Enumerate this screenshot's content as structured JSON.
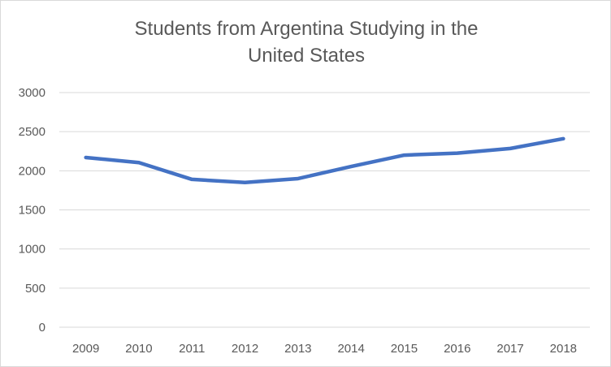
{
  "chart_data": {
    "type": "line",
    "title": "Students from Argentina Studying in the\nUnited States",
    "xlabel": "",
    "ylabel": "",
    "categories": [
      "2009",
      "2010",
      "2011",
      "2012",
      "2013",
      "2014",
      "2015",
      "2016",
      "2017",
      "2018"
    ],
    "series": [
      {
        "values": [
          2170,
          2105,
          1890,
          1850,
          1900,
          2055,
          2200,
          2225,
          2285,
          2410
        ],
        "color": "#4472c4"
      }
    ],
    "ylim": [
      0,
      3000
    ],
    "yticks": [
      0,
      500,
      1000,
      1500,
      2000,
      2500,
      3000
    ],
    "grid": true,
    "legend": "none"
  }
}
